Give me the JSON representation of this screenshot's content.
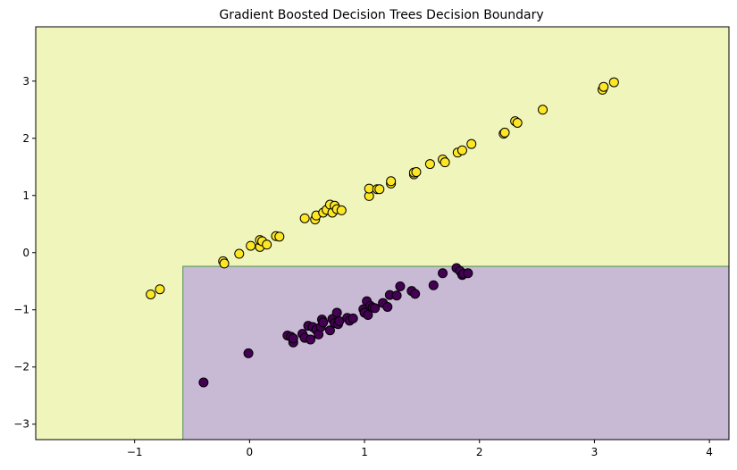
{
  "chart_data": {
    "type": "scatter",
    "title": "Gradient Boosted Decision Trees Decision Boundary",
    "xlabel": "",
    "ylabel": "",
    "xlim": [
      -1.86,
      4.17
    ],
    "ylim": [
      -3.27,
      3.95
    ],
    "xticks": [
      -1,
      0,
      1,
      2,
      3,
      4
    ],
    "yticks": [
      -3,
      -2,
      -1,
      0,
      1,
      2,
      3
    ],
    "grid": false,
    "legend": "none",
    "decision_regions": [
      {
        "class": 0,
        "rule": "x > -0.58 and y < -0.24",
        "color": "#c8bad4"
      },
      {
        "class": 1,
        "rule": "otherwise",
        "color": "#f0f5bb"
      }
    ],
    "boundary_color": "#6a9c6a",
    "boundary": {
      "x_split": -0.58,
      "y_split": -0.24
    },
    "series": [
      {
        "class": 1,
        "color": "#fde725",
        "points": [
          [
            -0.86,
            -0.73
          ],
          [
            -0.78,
            -0.64
          ],
          [
            -0.23,
            -0.15
          ],
          [
            -0.22,
            -0.19
          ],
          [
            -0.09,
            -0.02
          ],
          [
            0.01,
            0.12
          ],
          [
            0.09,
            0.1
          ],
          [
            0.09,
            0.22
          ],
          [
            0.11,
            0.2
          ],
          [
            0.15,
            0.14
          ],
          [
            0.23,
            0.29
          ],
          [
            0.26,
            0.28
          ],
          [
            0.48,
            0.6
          ],
          [
            0.57,
            0.58
          ],
          [
            0.58,
            0.65
          ],
          [
            0.64,
            0.7
          ],
          [
            0.67,
            0.75
          ],
          [
            0.7,
            0.84
          ],
          [
            0.72,
            0.7
          ],
          [
            0.74,
            0.82
          ],
          [
            0.76,
            0.76
          ],
          [
            0.8,
            0.74
          ],
          [
            1.04,
            0.99
          ],
          [
            1.04,
            1.12
          ],
          [
            1.11,
            1.11
          ],
          [
            1.13,
            1.11
          ],
          [
            1.23,
            1.21
          ],
          [
            1.23,
            1.25
          ],
          [
            1.43,
            1.37
          ],
          [
            1.43,
            1.4
          ],
          [
            1.45,
            1.41
          ],
          [
            1.57,
            1.55
          ],
          [
            1.68,
            1.63
          ],
          [
            1.7,
            1.58
          ],
          [
            1.81,
            1.75
          ],
          [
            1.85,
            1.79
          ],
          [
            1.93,
            1.9
          ],
          [
            2.21,
            2.08
          ],
          [
            2.22,
            2.1
          ],
          [
            2.31,
            2.3
          ],
          [
            2.33,
            2.27
          ],
          [
            2.55,
            2.5
          ],
          [
            3.07,
            2.85
          ],
          [
            3.08,
            2.9
          ],
          [
            3.17,
            2.98
          ]
        ]
      },
      {
        "class": 0,
        "color": "#440154",
        "points": [
          [
            -0.4,
            -2.27
          ],
          [
            -0.01,
            -1.76
          ],
          [
            0.33,
            -1.45
          ],
          [
            0.36,
            -1.47
          ],
          [
            0.38,
            -1.57
          ],
          [
            0.38,
            -1.5
          ],
          [
            0.46,
            -1.42
          ],
          [
            0.48,
            -1.49
          ],
          [
            0.51,
            -1.28
          ],
          [
            0.53,
            -1.52
          ],
          [
            0.55,
            -1.3
          ],
          [
            0.58,
            -1.35
          ],
          [
            0.6,
            -1.43
          ],
          [
            0.62,
            -1.3
          ],
          [
            0.63,
            -1.17
          ],
          [
            0.64,
            -1.22
          ],
          [
            0.7,
            -1.36
          ],
          [
            0.72,
            -1.16
          ],
          [
            0.74,
            -1.23
          ],
          [
            0.76,
            -1.05
          ],
          [
            0.77,
            -1.25
          ],
          [
            0.78,
            -1.2
          ],
          [
            0.85,
            -1.14
          ],
          [
            0.87,
            -1.19
          ],
          [
            0.9,
            -1.15
          ],
          [
            0.99,
            -0.99
          ],
          [
            1.0,
            -1.05
          ],
          [
            1.02,
            -0.85
          ],
          [
            1.03,
            -1.09
          ],
          [
            1.05,
            -0.93
          ],
          [
            1.07,
            -0.96
          ],
          [
            1.09,
            -0.97
          ],
          [
            1.16,
            -0.88
          ],
          [
            1.2,
            -0.95
          ],
          [
            1.22,
            -0.74
          ],
          [
            1.28,
            -0.75
          ],
          [
            1.31,
            -0.59
          ],
          [
            1.41,
            -0.67
          ],
          [
            1.44,
            -0.72
          ],
          [
            1.6,
            -0.57
          ],
          [
            1.68,
            -0.36
          ],
          [
            1.8,
            -0.27
          ],
          [
            1.83,
            -0.32
          ],
          [
            1.85,
            -0.39
          ],
          [
            1.86,
            -0.37
          ],
          [
            1.9,
            -0.36
          ]
        ]
      }
    ]
  }
}
